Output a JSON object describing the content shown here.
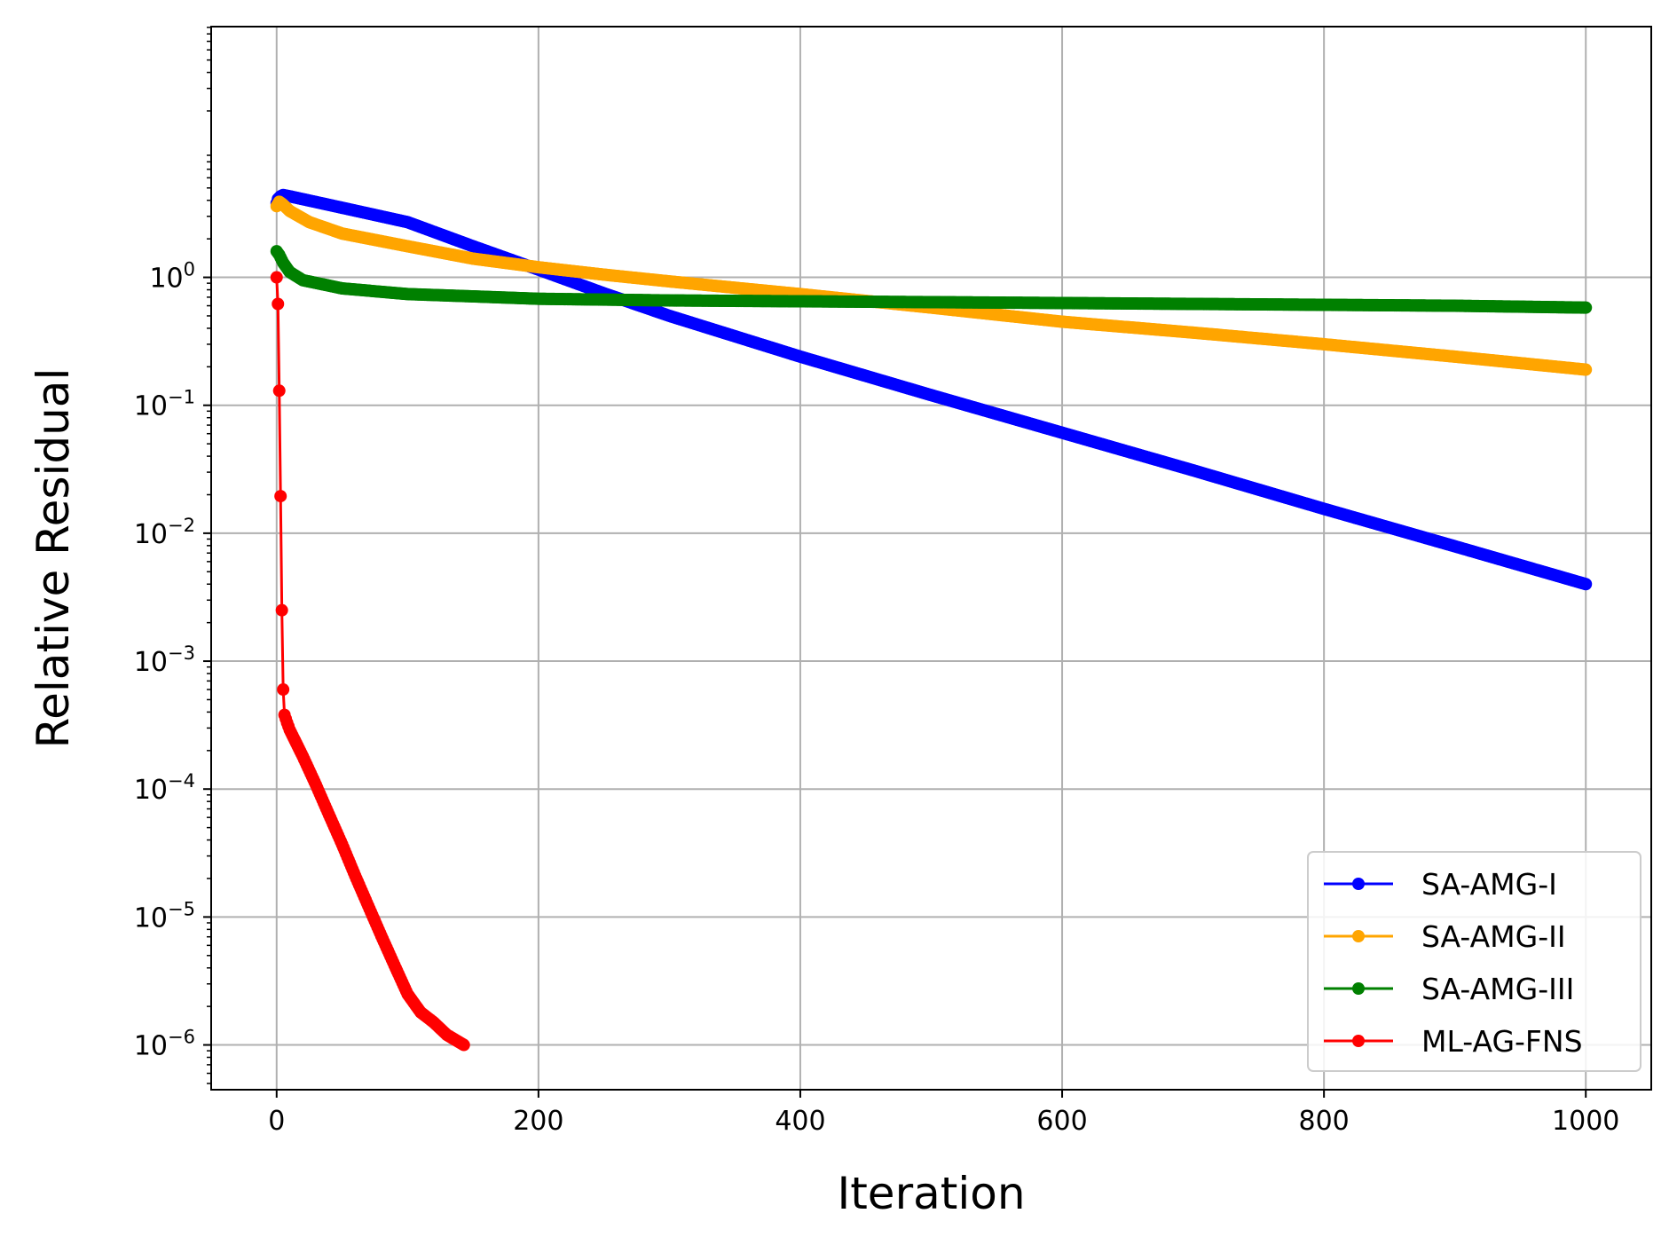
{
  "chart_data": {
    "type": "line",
    "title": "",
    "xlabel": "Iteration",
    "ylabel": "Relative Residual",
    "xlim": [
      -50,
      1050
    ],
    "ylim_log10": [
      -6.35,
      1.96
    ],
    "yscale": "log",
    "grid": true,
    "legend_position": "lower right",
    "x_ticks": [
      0,
      200,
      400,
      600,
      800,
      1000
    ],
    "x_tick_labels": [
      "0",
      "200",
      "400",
      "600",
      "800",
      "1000"
    ],
    "y_ticks": [
      1,
      0.1,
      0.01,
      0.001,
      0.0001,
      1e-05,
      1e-06
    ],
    "y_tick_labels": [
      {
        "base": "10",
        "exp": "0"
      },
      {
        "base": "10",
        "exp": "−1"
      },
      {
        "base": "10",
        "exp": "−2"
      },
      {
        "base": "10",
        "exp": "−3"
      },
      {
        "base": "10",
        "exp": "−4"
      },
      {
        "base": "10",
        "exp": "−5"
      },
      {
        "base": "10",
        "exp": "−6"
      }
    ],
    "series": [
      {
        "name": "SA-AMG-I",
        "color": "#0000ff",
        "points": [
          [
            0,
            3.8
          ],
          [
            1,
            4.1
          ],
          [
            3,
            4.3
          ],
          [
            5,
            4.4
          ],
          [
            10,
            4.3
          ],
          [
            50,
            3.5
          ],
          [
            100,
            2.7
          ],
          [
            150,
            1.75
          ],
          [
            200,
            1.15
          ],
          [
            250,
            0.75
          ],
          [
            300,
            0.5
          ],
          [
            400,
            0.24
          ],
          [
            500,
            0.12
          ],
          [
            600,
            0.061
          ],
          [
            700,
            0.031
          ],
          [
            800,
            0.0155
          ],
          [
            900,
            0.0079
          ],
          [
            1000,
            0.004
          ]
        ]
      },
      {
        "name": "SA-AMG-II",
        "color": "#ffa500",
        "points": [
          [
            0,
            3.6
          ],
          [
            2,
            3.9
          ],
          [
            5,
            3.7
          ],
          [
            10,
            3.3
          ],
          [
            25,
            2.7
          ],
          [
            50,
            2.2
          ],
          [
            100,
            1.75
          ],
          [
            150,
            1.4
          ],
          [
            200,
            1.2
          ],
          [
            250,
            1.05
          ],
          [
            300,
            0.93
          ],
          [
            400,
            0.74
          ],
          [
            500,
            0.58
          ],
          [
            600,
            0.45
          ],
          [
            700,
            0.37
          ],
          [
            800,
            0.3
          ],
          [
            900,
            0.24
          ],
          [
            1000,
            0.19
          ]
        ]
      },
      {
        "name": "SA-AMG-III",
        "color": "#008000",
        "points": [
          [
            0,
            1.6
          ],
          [
            2,
            1.5
          ],
          [
            5,
            1.3
          ],
          [
            10,
            1.1
          ],
          [
            20,
            0.95
          ],
          [
            50,
            0.82
          ],
          [
            100,
            0.74
          ],
          [
            150,
            0.71
          ],
          [
            200,
            0.68
          ],
          [
            300,
            0.66
          ],
          [
            400,
            0.65
          ],
          [
            500,
            0.64
          ],
          [
            600,
            0.63
          ],
          [
            700,
            0.62
          ],
          [
            800,
            0.61
          ],
          [
            900,
            0.6
          ],
          [
            1000,
            0.58
          ]
        ]
      },
      {
        "name": "ML-AG-FNS",
        "color": "#ff0000",
        "points": [
          [
            0,
            1.0
          ],
          [
            1,
            0.62
          ],
          [
            2,
            0.13
          ],
          [
            3,
            0.0195
          ],
          [
            4,
            0.0025
          ],
          [
            5,
            0.0006
          ],
          [
            6,
            0.00038
          ],
          [
            8,
            0.00033
          ],
          [
            10,
            0.00029
          ],
          [
            20,
            0.00018
          ],
          [
            30,
            0.000108
          ],
          [
            40,
            6.3e-05
          ],
          [
            50,
            3.7e-05
          ],
          [
            60,
            2.1e-05
          ],
          [
            70,
            1.22e-05
          ],
          [
            80,
            7.1e-06
          ],
          [
            90,
            4.2e-06
          ],
          [
            100,
            2.5e-06
          ],
          [
            110,
            1.8e-06
          ],
          [
            120,
            1.5e-06
          ],
          [
            130,
            1.2e-06
          ],
          [
            143,
            1e-06
          ]
        ]
      }
    ]
  }
}
